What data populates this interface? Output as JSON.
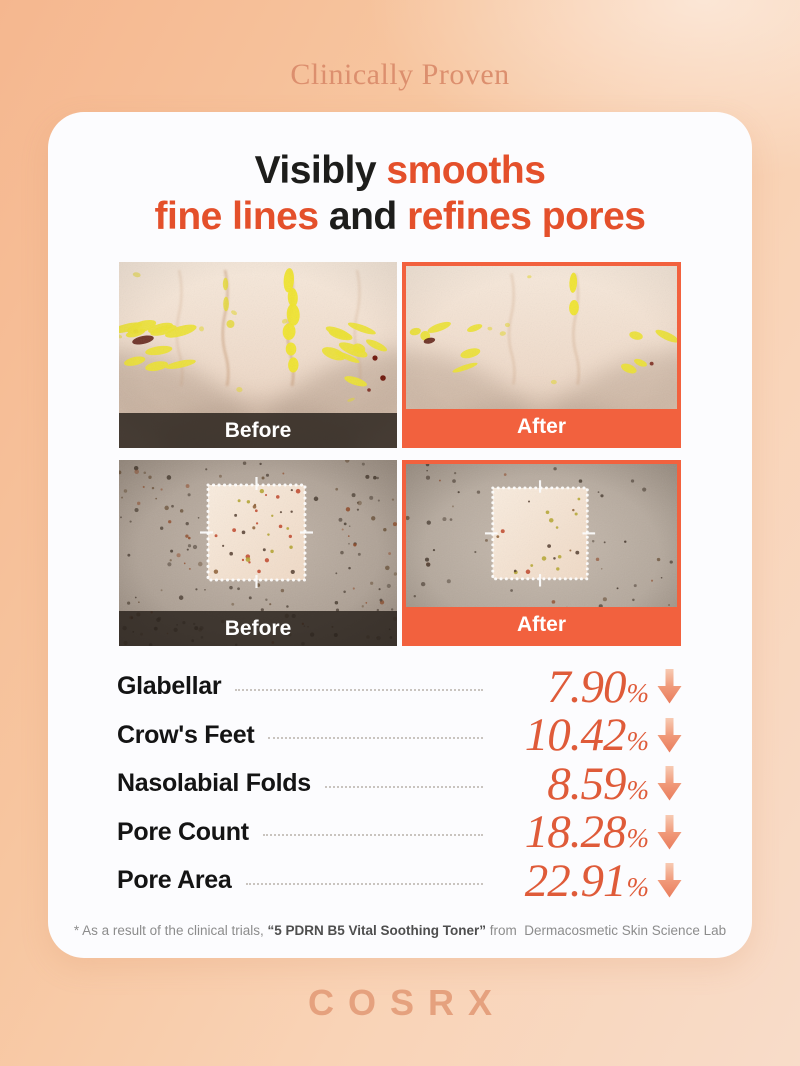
{
  "page": {
    "eyebrow": "Clinically Proven"
  },
  "title": {
    "line1": [
      {
        "text": "Visibly ",
        "accent": false
      },
      {
        "text": "smooths",
        "accent": true
      }
    ],
    "line2": [
      {
        "text": "fine lines",
        "accent": true
      },
      {
        "text": " and ",
        "accent": false
      },
      {
        "text": "refines pores",
        "accent": true
      }
    ]
  },
  "comparisons": [
    {
      "pair": "fine-lines",
      "label": "Before"
    },
    {
      "pair": "fine-lines",
      "label": "After"
    },
    {
      "pair": "pores",
      "label": "Before"
    },
    {
      "pair": "pores",
      "label": "After"
    }
  ],
  "stats": {
    "unit": "%",
    "rows": [
      {
        "label": "Glabellar",
        "value": "7.90"
      },
      {
        "label": "Crow's Feet",
        "value": "10.42"
      },
      {
        "label": "Nasolabial Folds",
        "value": "8.59"
      },
      {
        "label": "Pore Count",
        "value": "18.28"
      },
      {
        "label": "Pore Area",
        "value": "22.91"
      }
    ]
  },
  "footnote": {
    "prefix": "* As a result of the clinical trials, ",
    "product": "“5 PDRN B5 Vital Soothing Toner”",
    "suffix": " from  Dermacosmetic Skin Science Lab"
  },
  "footer": {
    "logo": "COSRX"
  },
  "colors": {
    "accent": "#E4502B",
    "after_bar": "#F2613E",
    "value_text": "#DF5B39",
    "background_top": "#F5B78F",
    "background_bottom": "#F8DCC9",
    "logo": "#E5A17E"
  }
}
